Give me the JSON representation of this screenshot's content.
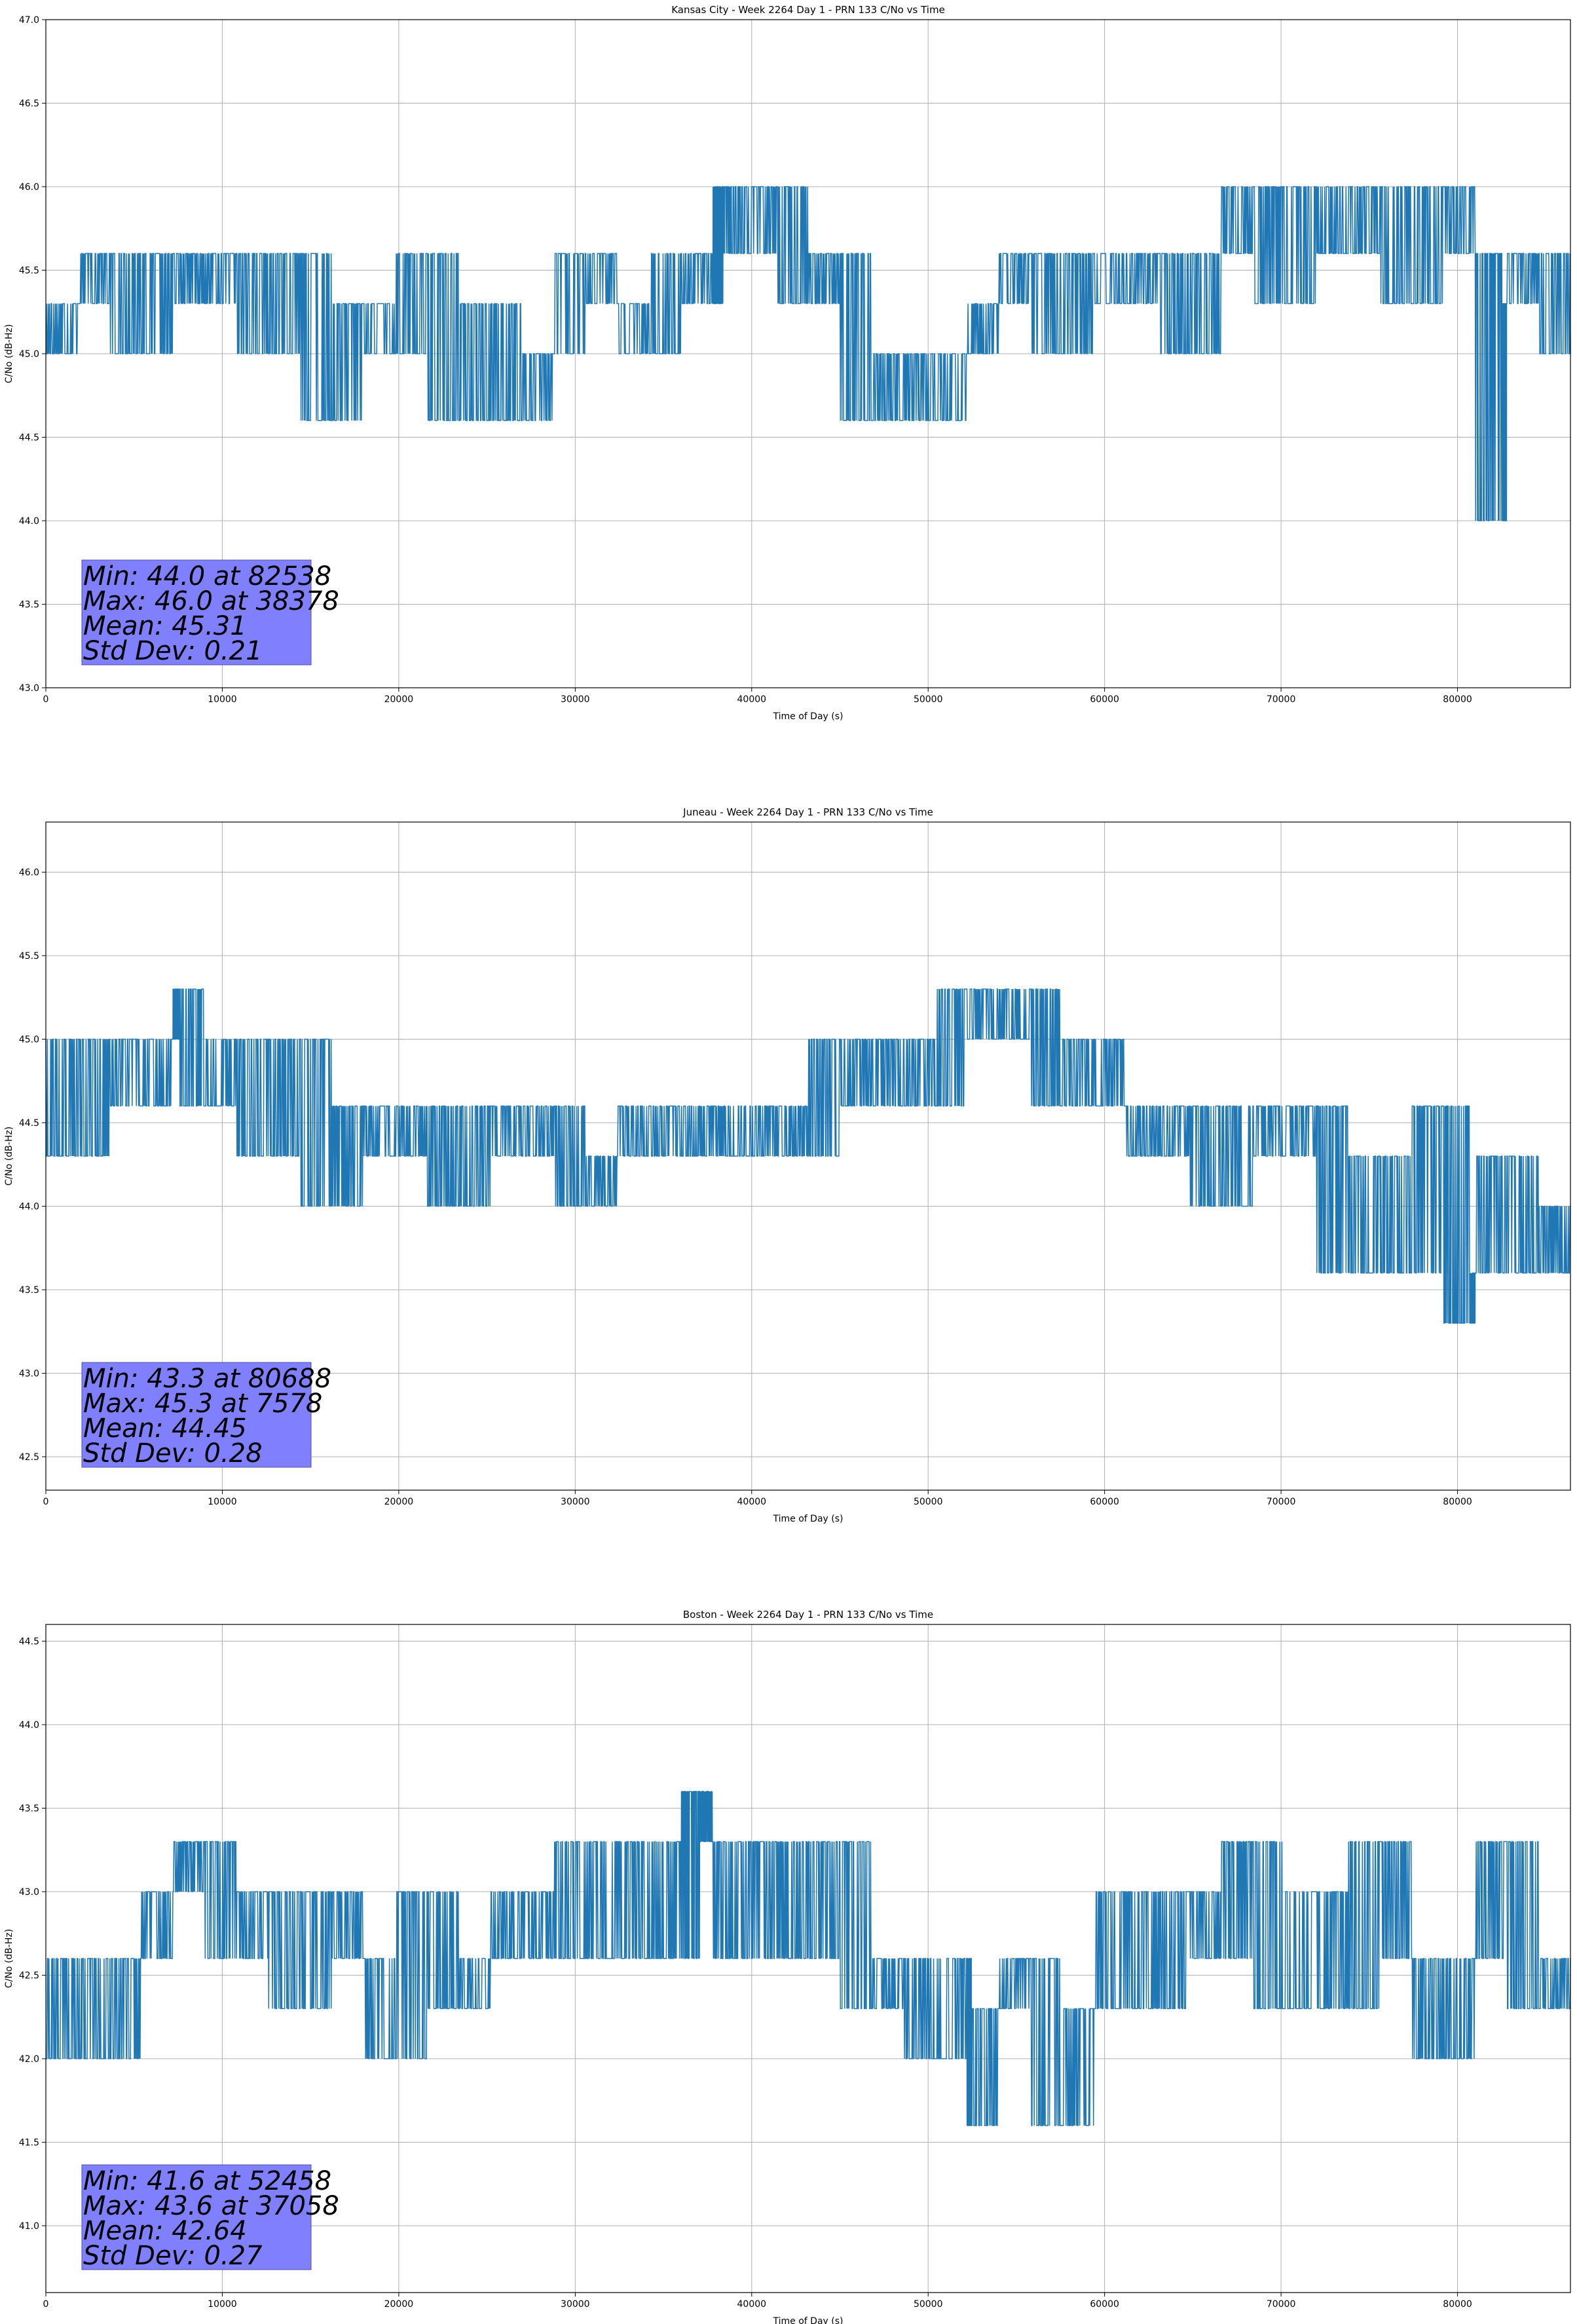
{
  "chart_data": [
    {
      "type": "line",
      "title": "Kansas City - Week 2264 Day 1 - PRN 133 C/No vs Time",
      "xlabel": "Time of Day (s)",
      "ylabel": "C/No (dB-Hz)",
      "xlim": [
        0,
        86400
      ],
      "ylim": [
        43.0,
        47.0
      ],
      "xticks": [
        0,
        10000,
        20000,
        30000,
        40000,
        50000,
        60000,
        70000,
        80000
      ],
      "xtick_labels": [
        "0",
        "10000",
        "20000",
        "30000",
        "40000",
        "50000",
        "60000",
        "70000",
        "80000"
      ],
      "yticks": [
        43.0,
        43.5,
        44.0,
        44.5,
        45.0,
        45.5,
        46.0,
        46.5,
        47.0
      ],
      "ytick_labels": [
        "43.0",
        "43.5",
        "44.0",
        "44.5",
        "45.0",
        "45.5",
        "46.0",
        "46.5",
        "47.0"
      ],
      "grid": true,
      "color": "#1f77b4",
      "series": [
        {
          "x": [
            0,
            1800,
            3600,
            5400,
            7200,
            9000,
            10800,
            12600,
            14400,
            16200,
            18000,
            19800,
            21600,
            23400,
            25200,
            27000,
            28800,
            30600,
            32400,
            34200,
            36000,
            37800,
            38378,
            39600,
            41400,
            43200,
            45000,
            46800,
            48600,
            50400,
            52200,
            54000,
            55800,
            57600,
            59400,
            61200,
            63000,
            64800,
            66600,
            68400,
            70200,
            72000,
            73800,
            75600,
            77400,
            79200,
            81000,
            82538,
            82800,
            84600,
            86400
          ],
          "y": [
            45.0,
            45.3,
            45.6,
            45.0,
            45.6,
            45.3,
            45.6,
            45.0,
            45.6,
            44.6,
            45.3,
            45.0,
            45.6,
            44.6,
            45.3,
            44.6,
            45.0,
            45.6,
            45.3,
            45.0,
            45.6,
            45.3,
            46.0,
            45.6,
            46.0,
            45.3,
            45.6,
            44.6,
            45.0,
            44.6,
            45.0,
            45.3,
            45.6,
            45.0,
            45.6,
            45.3,
            45.6,
            45.0,
            45.6,
            46.0,
            45.3,
            46.0,
            45.6,
            46.0,
            45.3,
            46.0,
            45.6,
            44.0,
            45.3,
            45.6,
            45.0
          ]
        }
      ],
      "stats": [
        "Min: 44.0 at 82538",
        "Max: 46.0 at 38378",
        "Mean: 45.31",
        "Std Dev: 0.21"
      ]
    },
    {
      "type": "line",
      "title": "Juneau - Week 2264 Day 1 - PRN 133 C/No vs Time",
      "xlabel": "Time of Day (s)",
      "ylabel": "C/No (dB-Hz)",
      "xlim": [
        0,
        86400
      ],
      "ylim": [
        42.3,
        46.3
      ],
      "xticks": [
        0,
        10000,
        20000,
        30000,
        40000,
        50000,
        60000,
        70000,
        80000
      ],
      "xtick_labels": [
        "0",
        "10000",
        "20000",
        "30000",
        "40000",
        "50000",
        "60000",
        "70000",
        "80000"
      ],
      "yticks": [
        42.5,
        43.0,
        43.5,
        44.0,
        44.5,
        45.0,
        45.5,
        46.0
      ],
      "ytick_labels": [
        "42.5",
        "43.0",
        "43.5",
        "44.0",
        "44.5",
        "45.0",
        "45.5",
        "46.0"
      ],
      "grid": true,
      "color": "#1f77b4",
      "series": [
        {
          "x": [
            0,
            1800,
            3600,
            5400,
            7200,
            7578,
            9000,
            10800,
            12600,
            14400,
            16200,
            18000,
            19800,
            21600,
            23400,
            25200,
            27000,
            28800,
            30600,
            32400,
            34200,
            36000,
            37800,
            39600,
            41400,
            43200,
            45000,
            46800,
            48600,
            50400,
            52200,
            54000,
            55800,
            57600,
            59400,
            61200,
            63000,
            64800,
            66600,
            68400,
            70200,
            72000,
            73800,
            75600,
            77400,
            79200,
            80688,
            81000,
            82800,
            84600,
            86400
          ],
          "y": [
            45.0,
            44.3,
            45.0,
            44.6,
            45.0,
            45.3,
            44.6,
            45.0,
            44.3,
            45.0,
            44.0,
            44.6,
            44.3,
            44.6,
            44.0,
            44.6,
            44.3,
            44.6,
            44.0,
            44.3,
            44.6,
            44.3,
            44.6,
            44.3,
            44.6,
            44.3,
            45.0,
            44.6,
            45.0,
            44.6,
            45.3,
            45.0,
            45.3,
            44.6,
            45.0,
            44.6,
            44.3,
            44.6,
            44.0,
            44.6,
            44.3,
            44.6,
            43.6,
            44.3,
            43.6,
            44.6,
            43.3,
            43.6,
            44.3,
            43.6,
            44.0
          ]
        }
      ],
      "stats": [
        "Min: 43.3 at 80688",
        "Max: 45.3 at 7578",
        "Mean: 44.45",
        "Std Dev: 0.28"
      ]
    },
    {
      "type": "line",
      "title": "Boston - Week 2264 Day 1 - PRN 133 C/No vs Time",
      "xlabel": "Time of Day (s)",
      "ylabel": "C/No (dB-Hz)",
      "xlim": [
        0,
        86400
      ],
      "ylim": [
        40.6,
        44.6
      ],
      "xticks": [
        0,
        10000,
        20000,
        30000,
        40000,
        50000,
        60000,
        70000,
        80000
      ],
      "xtick_labels": [
        "0",
        "10000",
        "20000",
        "30000",
        "40000",
        "50000",
        "60000",
        "70000",
        "80000"
      ],
      "yticks": [
        41.0,
        41.5,
        42.0,
        42.5,
        43.0,
        43.5,
        44.0,
        44.5
      ],
      "ytick_labels": [
        "41.0",
        "41.5",
        "42.0",
        "42.5",
        "43.0",
        "43.5",
        "44.0",
        "44.5"
      ],
      "grid": true,
      "color": "#1f77b4",
      "series": [
        {
          "x": [
            0,
            1800,
            3600,
            5400,
            7200,
            9000,
            10800,
            12600,
            14400,
            16200,
            18000,
            19800,
            21600,
            23400,
            25200,
            27000,
            28800,
            30600,
            32400,
            34200,
            36000,
            37058,
            37800,
            39600,
            41400,
            43200,
            45000,
            46800,
            48600,
            50400,
            52200,
            52458,
            54000,
            55800,
            57600,
            59400,
            61200,
            63000,
            64800,
            66600,
            68400,
            70200,
            72000,
            73800,
            75600,
            77400,
            79200,
            81000,
            82800,
            84600,
            86400
          ],
          "y": [
            42.0,
            42.6,
            42.0,
            42.6,
            43.0,
            43.3,
            42.6,
            43.0,
            42.3,
            43.0,
            42.6,
            42.0,
            43.0,
            42.3,
            42.6,
            43.0,
            42.6,
            43.3,
            42.6,
            43.3,
            42.6,
            43.6,
            43.3,
            42.6,
            43.3,
            42.6,
            43.3,
            42.3,
            42.6,
            42.0,
            42.6,
            41.6,
            42.3,
            42.6,
            41.6,
            42.3,
            43.0,
            42.3,
            43.0,
            42.6,
            43.3,
            42.3,
            43.0,
            42.3,
            43.3,
            42.6,
            42.0,
            42.6,
            43.3,
            42.3,
            42.6
          ]
        }
      ],
      "stats": [
        "Min: 41.6 at 52458",
        "Max: 43.6 at 37058",
        "Mean: 42.64",
        "Std Dev: 0.27"
      ]
    }
  ]
}
